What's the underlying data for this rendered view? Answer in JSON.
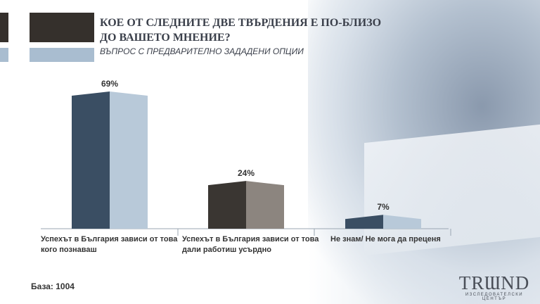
{
  "title": "КОЕ ОТ СЛЕДНИТЕ ДВЕ ТВЪРДЕНИЯ Е ПО-БЛИЗО ДО ВАШЕТО МНЕНИЕ?",
  "subtitle": "ВЪПРОС С ПРЕДВАРИТЕЛНО ЗАДАДЕНИ ОПЦИИ",
  "base": "База: 1004",
  "logo": {
    "main": "TRƜND",
    "sub": "изследователски център"
  },
  "colors": {
    "bar1_left": "#3a4e63",
    "bar1_right": "#b8c9d9",
    "bar2_left": "#3a3632",
    "bar2_right": "#8c857f",
    "bar3_left": "#3a4e63",
    "bar3_right": "#b8c9d9",
    "axis": "#9aa6b2"
  },
  "chart_data": {
    "type": "bar",
    "categories": [
      "Успехът в България зависи от това кого познаваш",
      "Успехът в България зависи от това дали работиш усърдно",
      "Не знам/ Не мога да преценя"
    ],
    "values": [
      69,
      24,
      7
    ],
    "data_labels": [
      "69%",
      "24%",
      "7%"
    ],
    "ylim": [
      0,
      69
    ],
    "grid": false
  }
}
